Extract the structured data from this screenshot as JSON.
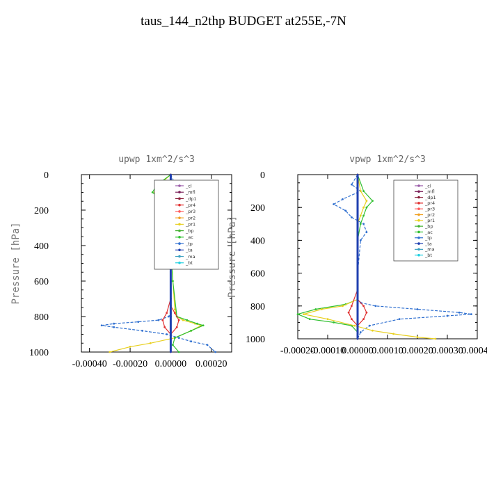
{
  "title": "taus_144_n2thp  BUDGET at255E,-7N",
  "legend_labels": [
    "_cl",
    "_mfl",
    "_dp1",
    "_pr4",
    "_pr3",
    "_pr2",
    "_pr1",
    "_bp",
    "_ac",
    "_tp",
    "_ta",
    "_ma",
    "_bt"
  ],
  "series_colors": {
    "_cl": "#9a5ba8",
    "_mfl": "#7a1e58",
    "_dp1": "#8a1f3a",
    "_pr4": "#e03030",
    "_pr3": "#ff5a5a",
    "_pr2": "#f0a020",
    "_pr1": "#e8d020",
    "_bp": "#40b030",
    "_ac": "#30c030",
    "_tp": "#3070d0",
    "_ta": "#2040b0",
    "_ma": "#3aa0c0",
    "_bt": "#20d0e0"
  },
  "chart_data": [
    {
      "type": "line",
      "title": "upwp  1xm^2/s^3",
      "ylabel": "Pressure [hPa]",
      "xlim": [
        -0.00044,
        0.0003
      ],
      "ylim": [
        1000,
        0
      ],
      "y_ticks": [
        0,
        200,
        400,
        600,
        800,
        1000
      ],
      "y_tick_labels": [
        "0",
        "200",
        "400",
        "600",
        "800",
        "1000"
      ],
      "x_ticks": [
        -0.0004,
        -0.0002,
        0.0,
        0.0002
      ],
      "x_tick_labels": [
        "-0.00040",
        "-0.00020",
        "0.00000",
        "0.00020"
      ],
      "series": [
        {
          "name": "_tp",
          "x": [
            0,
            2e-05,
            -1e-05,
            3e-05,
            1e-05,
            -1e-05,
            1e-05,
            -1e-05,
            0,
            0,
            0,
            0,
            -1e-05,
            -6e-05,
            -0.00016,
            -0.00028,
            -0.00034,
            -0.00028,
            -0.00014,
            -2e-05,
            4e-05,
            0.0001,
            0.00018,
            0.00022
          ],
          "y": [
            0,
            50,
            100,
            150,
            200,
            250,
            300,
            400,
            500,
            600,
            700,
            780,
            800,
            820,
            830,
            840,
            850,
            860,
            880,
            900,
            920,
            940,
            960,
            1000
          ]
        },
        {
          "name": "_pr1",
          "x": [
            0,
            -6e-05,
            -8e-05,
            -4e-05,
            -1e-05,
            0,
            1e-05,
            2e-05,
            3e-05,
            6e-05,
            0.00012,
            0.00015,
            0.0001,
            2e-05,
            -0.0001,
            -0.0002,
            -0.0003
          ],
          "y": [
            0,
            60,
            100,
            150,
            200,
            400,
            600,
            760,
            800,
            820,
            840,
            850,
            880,
            920,
            950,
            970,
            1000
          ]
        },
        {
          "name": "_ac",
          "x": [
            0,
            -7e-05,
            -9e-05,
            -4e-05,
            -1e-05,
            0,
            1e-05,
            3e-05,
            8e-05,
            0.00013,
            0.00016,
            0.0001,
            2e-05,
            1e-05,
            4e-05
          ],
          "y": [
            0,
            60,
            100,
            150,
            200,
            400,
            600,
            800,
            820,
            840,
            850,
            880,
            920,
            960,
            1000
          ]
        },
        {
          "name": "_pr4",
          "x": [
            0,
            0,
            0,
            0,
            -2e-05,
            -4e-05,
            -3e-05,
            0,
            3e-05,
            4e-05,
            2e-05,
            0,
            0
          ],
          "y": [
            0,
            200,
            400,
            700,
            780,
            820,
            860,
            900,
            860,
            820,
            780,
            740,
            1000
          ]
        },
        {
          "name": "_ta",
          "x": [
            0,
            0,
            0,
            0,
            0,
            0
          ],
          "y": [
            0,
            200,
            400,
            600,
            800,
            1000
          ]
        }
      ]
    },
    {
      "type": "line",
      "title": "vpwp  1xm^2/s^3",
      "ylabel": "Pressure [hPa]",
      "xlim": [
        -0.0002,
        0.0004
      ],
      "ylim": [
        1000,
        0
      ],
      "y_ticks": [
        0,
        200,
        400,
        600,
        800,
        1000
      ],
      "y_tick_labels": [
        "0",
        "200",
        "400",
        "600",
        "800",
        "1000"
      ],
      "x_ticks": [
        -0.0002,
        -0.0001,
        0.0,
        0.0001,
        0.0002,
        0.0003,
        0.0004
      ],
      "x_tick_labels": [
        "-0.00020",
        "-0.00010",
        "0.00000",
        "0.00010",
        "0.00020",
        "0.00030",
        "0.00040"
      ],
      "series": [
        {
          "name": "_tp",
          "x": [
            0,
            -2e-05,
            1e-05,
            -5e-05,
            -8e-05,
            -4e-05,
            -2e-05,
            2e-05,
            3e-05,
            1e-05,
            0,
            0,
            1e-05,
            6e-05,
            0.0002,
            0.00034,
            0.00038,
            0.0003,
            0.00014,
            4e-05,
            1e-05,
            0
          ],
          "y": [
            0,
            60,
            100,
            150,
            180,
            220,
            260,
            300,
            350,
            400,
            600,
            760,
            780,
            800,
            820,
            840,
            850,
            860,
            880,
            920,
            960,
            1000
          ]
        },
        {
          "name": "_ac",
          "x": [
            0,
            2e-05,
            5e-05,
            3e-05,
            2e-05,
            1e-05,
            0,
            0,
            -4e-05,
            -0.00014,
            -0.0002,
            -0.00016,
            -8e-05,
            -2e-05,
            0,
            0
          ],
          "y": [
            0,
            100,
            160,
            200,
            250,
            300,
            400,
            760,
            790,
            820,
            850,
            880,
            900,
            920,
            960,
            1000
          ]
        },
        {
          "name": "_pr1",
          "x": [
            0,
            1e-05,
            3e-05,
            2e-05,
            1e-05,
            0,
            0,
            -5e-05,
            -0.00012,
            -0.00018,
            -0.0001,
            -1e-05,
            5e-05,
            0.00012,
            0.0002,
            0.00026
          ],
          "y": [
            0,
            100,
            160,
            200,
            250,
            300,
            760,
            800,
            820,
            850,
            880,
            920,
            950,
            970,
            990,
            1000
          ]
        },
        {
          "name": "_pr4",
          "x": [
            0,
            0,
            0,
            0,
            -2e-05,
            -3e-05,
            -2e-05,
            0,
            2e-05,
            3e-05,
            2e-05,
            0,
            0
          ],
          "y": [
            0,
            200,
            400,
            700,
            800,
            840,
            880,
            920,
            880,
            840,
            800,
            760,
            1000
          ]
        },
        {
          "name": "_ta",
          "x": [
            0,
            0,
            0,
            0,
            0,
            0
          ],
          "y": [
            0,
            200,
            400,
            600,
            800,
            1000
          ]
        }
      ]
    }
  ]
}
